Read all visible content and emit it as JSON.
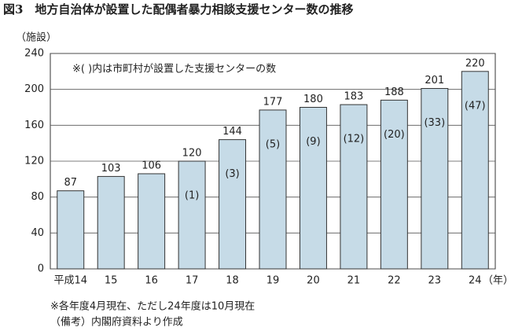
{
  "chart_data": {
    "type": "bar",
    "title": "図3　地方自治体が設置した配偶者暴力相談支援センター数の推移",
    "y_label": "（施設）",
    "x_label": "（年）",
    "annotation": "※( )内は市町村が設置した支援センターの数",
    "footnotes": [
      "※各年度4月現在、ただし24年度は10月現在",
      "（備考）内閣府資料より作成"
    ],
    "categories": [
      "平成14",
      "15",
      "16",
      "17",
      "18",
      "19",
      "20",
      "21",
      "22",
      "23",
      "24"
    ],
    "values": [
      87,
      103,
      106,
      120,
      144,
      177,
      180,
      183,
      188,
      201,
      220
    ],
    "inner_labels": [
      null,
      null,
      null,
      "(1)",
      "(3)",
      "(5)",
      "(9)",
      "(12)",
      "(20)",
      "(33)",
      "(47)"
    ],
    "color": "#c6dbe7",
    "ylim": [
      0,
      240
    ],
    "yticks": [
      0,
      40,
      80,
      120,
      160,
      200,
      240
    ],
    "grid": true
  }
}
